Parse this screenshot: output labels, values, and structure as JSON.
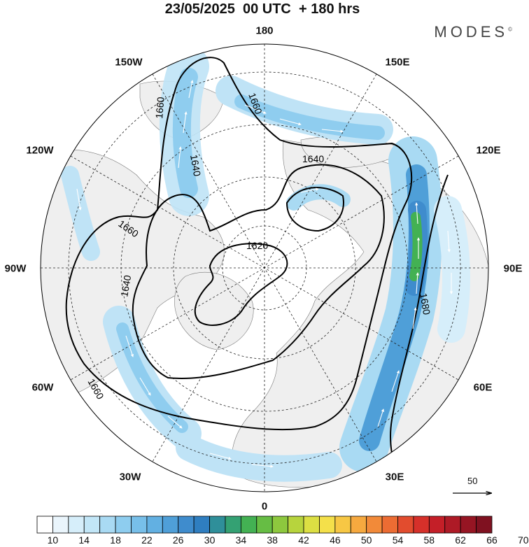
{
  "header": {
    "title": "23/05/2025  00 UTC  + 180 hrs",
    "brand": "MODES"
  },
  "map": {
    "projection": "north-polar-stereographic",
    "longitude_labels": {
      "top": "180",
      "top_left": "150W",
      "top_right": "150E",
      "upper_left": "120W",
      "upper_right": "120E",
      "left": "90W",
      "right": "90E",
      "lower_left": "60W",
      "lower_right": "60E",
      "bottom_left": "30W",
      "bottom_right": "30E",
      "bottom": "0"
    },
    "contour_labels": [
      "1620",
      "1640",
      "1640",
      "1640",
      "1660",
      "1660",
      "1660",
      "1660",
      "1680"
    ],
    "colors": {
      "land": "#efefef",
      "ocean": "#ffffff",
      "contour": "#000000",
      "arrows": "#ffffff"
    }
  },
  "wind_scale": {
    "label": "50"
  },
  "colorbar": {
    "ticks": [
      "10",
      "14",
      "18",
      "22",
      "26",
      "30",
      "34",
      "38",
      "42",
      "46",
      "50",
      "54",
      "58",
      "62",
      "66",
      "70"
    ],
    "colors": [
      "#ffffff",
      "#eaf5fc",
      "#d6eefa",
      "#c2e6f7",
      "#a9daf3",
      "#8ecdef",
      "#77bfe9",
      "#62b0e2",
      "#4f9fd8",
      "#3f8ccd",
      "#2f7ec0",
      "#2f8f9a",
      "#34a173",
      "#43b153",
      "#66bd44",
      "#8dc83e",
      "#b7d43d",
      "#dcdf43",
      "#f4e04a",
      "#f7c744",
      "#f6a93f",
      "#f28a39",
      "#ec6c33",
      "#e24c2e",
      "#d6302a",
      "#c41f28",
      "#ae1a26",
      "#961523",
      "#7f1120"
    ]
  }
}
